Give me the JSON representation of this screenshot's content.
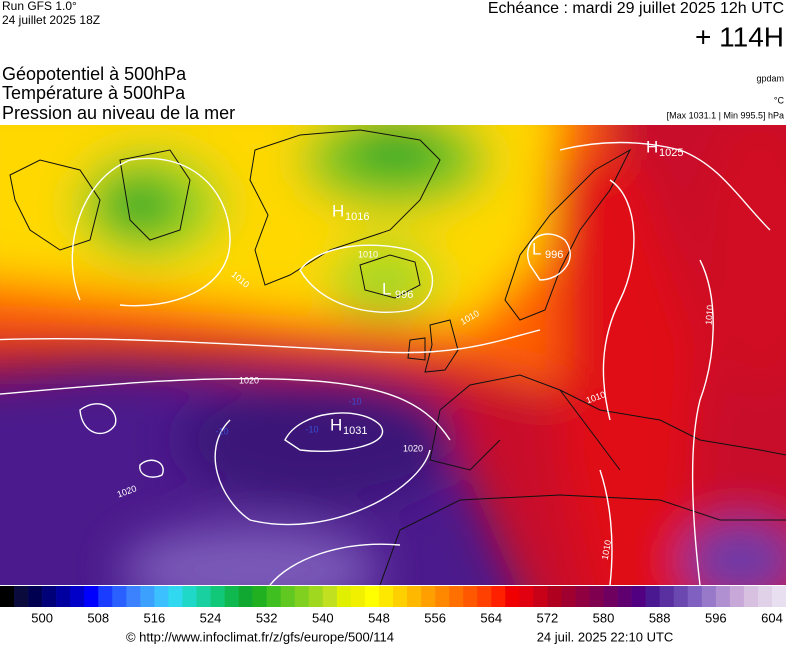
{
  "header": {
    "run": "Run GFS 1.0°",
    "run_date": "24 juillet 2025 18Z",
    "forecast": "Echéance : mardi 29 juillet 2025 12h UTC",
    "lead": "+ 114H"
  },
  "fields": [
    "Géopotentiel à 500hPa",
    "Température à 500hPa",
    "Pression au niveau de la mer"
  ],
  "units": [
    "gpdam",
    "°C",
    "[Max 1031.1 | Min 995.5] hPa"
  ],
  "map": {
    "centers": [
      {
        "symbol": "H",
        "value": "1016"
      },
      {
        "symbol": "L",
        "value": "996"
      },
      {
        "symbol": "L",
        "value": "996"
      },
      {
        "symbol": "H",
        "value": "1031"
      },
      {
        "symbol": "H",
        "value": "1025"
      }
    ],
    "isobar_labels": [
      "1020",
      "1020",
      "1020",
      "1010",
      "1010",
      "1010",
      "1010",
      "1010",
      "1010"
    ],
    "temp_labels": [
      "-10",
      "-10",
      "-10"
    ]
  },
  "colorbar": {
    "range": [
      494,
      606
    ],
    "ticks": [
      500,
      508,
      516,
      524,
      532,
      540,
      548,
      556,
      564,
      572,
      580,
      588,
      596,
      604
    ],
    "colors": [
      "#000000",
      "#0a0a3c",
      "#000050",
      "#000078",
      "#0000a0",
      "#0000c8",
      "#0000ff",
      "#1a3cff",
      "#2a60ff",
      "#3c82ff",
      "#3ca0ff",
      "#3cc0ff",
      "#30d8f0",
      "#20d8c8",
      "#18d0a0",
      "#10c878",
      "#10b850",
      "#10a830",
      "#20b020",
      "#40c020",
      "#60c820",
      "#80d020",
      "#a0d820",
      "#c0e020",
      "#e0f000",
      "#f0f000",
      "#ffff00",
      "#ffe800",
      "#ffd000",
      "#ffb800",
      "#ffa000",
      "#ff8800",
      "#ff7000",
      "#ff5800",
      "#ff4000",
      "#ff2000",
      "#f00000",
      "#e00010",
      "#c80018",
      "#b00020",
      "#a00030",
      "#900040",
      "#800050",
      "#700060",
      "#600070",
      "#500080",
      "#4a1890",
      "#5a30a0",
      "#6a48b0",
      "#8060c0",
      "#9878c8",
      "#b090d0",
      "#c8a8d8",
      "#d8c0e0",
      "#e0d0e8",
      "#e8e0f0"
    ]
  },
  "footer": {
    "url": "© http://www.infoclimat.fr/z/gfs/europe/500/114",
    "timestamp": "24 juil. 2025 22:10 UTC"
  }
}
